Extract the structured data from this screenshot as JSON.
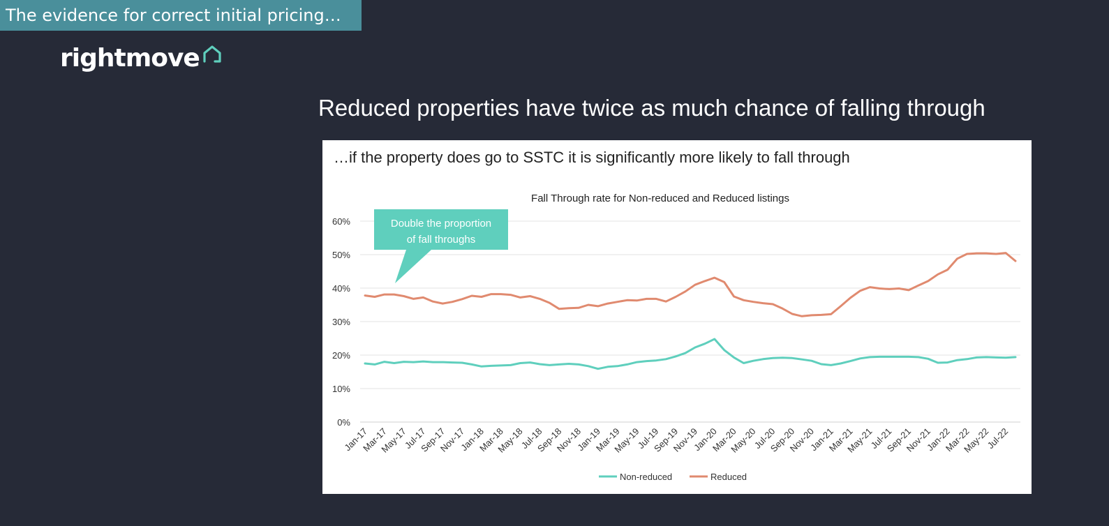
{
  "banner": {
    "title": "The evidence for correct initial pricing…"
  },
  "logo": {
    "text": "rightmove"
  },
  "headline": "Reduced properties have twice as much chance of falling through",
  "panel": {
    "subtitle": "…if the property does go to SSTC it is significantly more likely to fall through"
  },
  "callout": {
    "line1": "Double the proportion",
    "line2": "of fall throughs"
  },
  "colors": {
    "nonreduced": "#5fcfbd",
    "reduced": "#e08a6f",
    "callout": "#5fcfbd",
    "banner": "#4a8f9b"
  },
  "chart_data": {
    "type": "line",
    "title": "Fall Through rate for Non-reduced and Reduced listings",
    "xlabel": "",
    "ylabel": "",
    "ylim": [
      0,
      60
    ],
    "yticks": [
      "0%",
      "10%",
      "20%",
      "30%",
      "40%",
      "50%",
      "60%"
    ],
    "ytick_values": [
      0,
      10,
      20,
      30,
      40,
      50,
      60
    ],
    "xtick_labels": [
      "Jan-17",
      "Mar-17",
      "May-17",
      "Jul-17",
      "Sep-17",
      "Nov-17",
      "Jan-18",
      "Mar-18",
      "May-18",
      "Jul-18",
      "Sep-18",
      "Nov-18",
      "Jan-19",
      "Mar-19",
      "May-19",
      "Jul-19",
      "Sep-19",
      "Nov-19",
      "Jan-20",
      "Mar-20",
      "May-20",
      "Jul-20",
      "Sep-20",
      "Nov-20",
      "Jan-21",
      "Mar-21",
      "May-21",
      "Jul-21",
      "Sep-21",
      "Nov-21",
      "Jan-22",
      "Mar-22",
      "May-22",
      "Jul-22"
    ],
    "x": [
      "Jan-17",
      "Feb-17",
      "Mar-17",
      "Apr-17",
      "May-17",
      "Jun-17",
      "Jul-17",
      "Aug-17",
      "Sep-17",
      "Oct-17",
      "Nov-17",
      "Dec-17",
      "Jan-18",
      "Feb-18",
      "Mar-18",
      "Apr-18",
      "May-18",
      "Jun-18",
      "Jul-18",
      "Aug-18",
      "Sep-18",
      "Oct-18",
      "Nov-18",
      "Dec-18",
      "Jan-19",
      "Feb-19",
      "Mar-19",
      "Apr-19",
      "May-19",
      "Jun-19",
      "Jul-19",
      "Aug-19",
      "Sep-19",
      "Oct-19",
      "Nov-19",
      "Dec-19",
      "Jan-20",
      "Feb-20",
      "Mar-20",
      "Apr-20",
      "May-20",
      "Jun-20",
      "Jul-20",
      "Aug-20",
      "Sep-20",
      "Oct-20",
      "Nov-20",
      "Dec-20",
      "Jan-21",
      "Feb-21",
      "Mar-21",
      "Apr-21",
      "May-21",
      "Jun-21",
      "Jul-21",
      "Aug-21",
      "Sep-21",
      "Oct-21",
      "Nov-21",
      "Dec-21",
      "Jan-22",
      "Feb-22",
      "Mar-22",
      "Apr-22",
      "May-22",
      "Jun-22",
      "Jul-22",
      "Aug-22"
    ],
    "series": [
      {
        "name": "Non-reduced",
        "values": [
          17.5,
          17.2,
          18,
          17.6,
          18,
          17.9,
          18.1,
          17.9,
          17.9,
          17.8,
          17.7,
          17.2,
          16.6,
          16.8,
          16.9,
          17.0,
          17.6,
          17.8,
          17.3,
          17.0,
          17.2,
          17.4,
          17.2,
          16.7,
          15.9,
          16.5,
          16.7,
          17.2,
          17.9,
          18.2,
          18.4,
          18.8,
          19.6,
          20.6,
          22.3,
          23.4,
          24.8,
          21.5,
          19.3,
          17.6,
          18.3,
          18.8,
          19.1,
          19.2,
          19.1,
          18.7,
          18.3,
          17.3,
          17.0,
          17.5,
          18.2,
          19.0,
          19.4,
          19.5,
          19.5,
          19.5,
          19.5,
          19.4,
          18.9,
          17.7,
          17.8,
          18.5,
          18.8,
          19.3,
          19.4,
          19.3,
          19.2,
          19.4
        ]
      },
      {
        "name": "Reduced",
        "values": [
          37.8,
          37.4,
          38.1,
          38.1,
          37.6,
          36.8,
          37.2,
          36.0,
          35.4,
          35.9,
          36.7,
          37.7,
          37.4,
          38.2,
          38.2,
          38.0,
          37.2,
          37.6,
          36.8,
          35.6,
          33.8,
          34.0,
          34.1,
          35.0,
          34.6,
          35.4,
          35.9,
          36.4,
          36.3,
          36.8,
          36.8,
          36.0,
          37.4,
          39.0,
          41.0,
          42.1,
          43.1,
          41.8,
          37.5,
          36.4,
          35.9,
          35.5,
          35.2,
          33.9,
          32.3,
          31.6,
          31.9,
          32.0,
          32.2,
          34.6,
          37.1,
          39.2,
          40.3,
          39.9,
          39.7,
          39.9,
          39.4,
          40.8,
          42.1,
          44.1,
          45.5,
          48.8,
          50.2,
          50.4,
          50.4,
          50.2,
          50.5,
          48.1
        ]
      }
    ],
    "legend": [
      "Non-reduced",
      "Reduced"
    ],
    "legend_position": "bottom-center",
    "grid": true
  }
}
